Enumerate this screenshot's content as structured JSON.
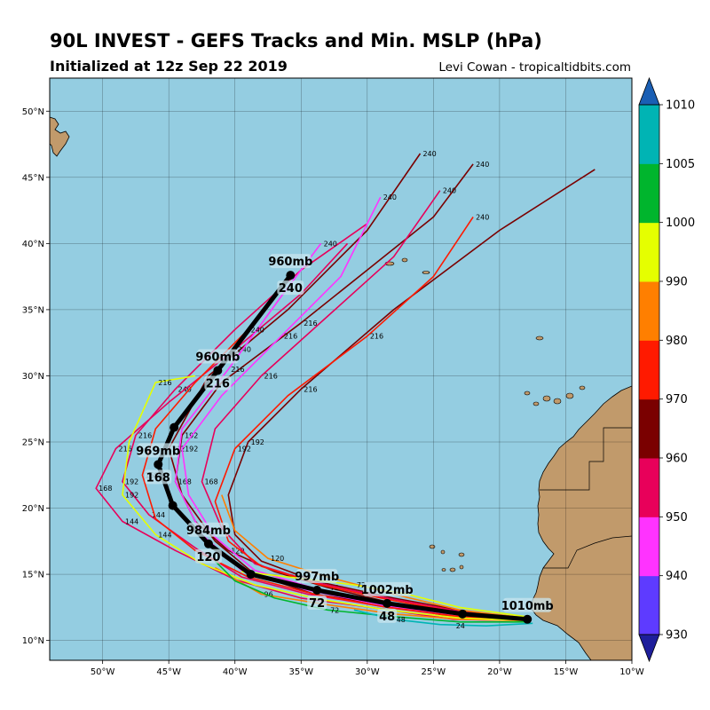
{
  "header": {
    "title": "90L INVEST - GEFS Tracks and Min. MSLP (hPa)",
    "subtitle": "Initialized at 12z Sep 22 2019",
    "credit": "Levi Cowan - tropicaltidbits.com"
  },
  "colors": {
    "ocean": "#94CDE1",
    "land": "#C19A6B",
    "mean_track": "#000000"
  },
  "map": {
    "lon_range": [
      -54,
      -10
    ],
    "lat_range": [
      8.5,
      52.5
    ],
    "lat_ticks": [
      {
        "value": 10,
        "label": "10°N"
      },
      {
        "value": 15,
        "label": "15°N"
      },
      {
        "value": 20,
        "label": "20°N"
      },
      {
        "value": 25,
        "label": "25°N"
      },
      {
        "value": 30,
        "label": "30°N"
      },
      {
        "value": 35,
        "label": "35°N"
      },
      {
        "value": 40,
        "label": "40°N"
      },
      {
        "value": 45,
        "label": "45°N"
      },
      {
        "value": 50,
        "label": "50°N"
      }
    ],
    "lon_ticks": [
      {
        "value": -50,
        "label": "50°W"
      },
      {
        "value": -45,
        "label": "45°W"
      },
      {
        "value": -40,
        "label": "40°W"
      },
      {
        "value": -35,
        "label": "35°W"
      },
      {
        "value": -30,
        "label": "30°W"
      },
      {
        "value": -25,
        "label": "25°W"
      },
      {
        "value": -20,
        "label": "20°W"
      },
      {
        "value": -15,
        "label": "15°W"
      },
      {
        "value": -10,
        "label": "10°W"
      }
    ]
  },
  "colorbar": {
    "levels": [
      930,
      940,
      950,
      960,
      970,
      980,
      990,
      1000,
      1005,
      1010
    ],
    "colors": [
      "#5E3BFF",
      "#FF33FF",
      "#E8005A",
      "#7A0000",
      "#FF1A00",
      "#FF7F00",
      "#E5FF00",
      "#00B52D",
      "#00B4B4"
    ],
    "under_color": "#1E1E9B",
    "over_color": "#1A5FB4",
    "tick_labels": [
      "930",
      "940",
      "950",
      "960",
      "970",
      "980",
      "990",
      "1000",
      "1005",
      "1010"
    ]
  },
  "mean_track": {
    "points": [
      {
        "lon": -17.9,
        "lat": 11.6,
        "hour": 0,
        "mslp": "1010mb"
      },
      {
        "lon": -22.8,
        "lat": 12.0,
        "hour": 24
      },
      {
        "lon": -28.5,
        "lat": 12.8,
        "hour": 48,
        "mslp": "1002mb"
      },
      {
        "lon": -33.8,
        "lat": 13.8,
        "hour": 72,
        "mslp": "997mb"
      },
      {
        "lon": -38.8,
        "lat": 15.0,
        "hour": 96
      },
      {
        "lon": -42.0,
        "lat": 17.3,
        "hour": 120,
        "mslp": "984mb"
      },
      {
        "lon": -44.7,
        "lat": 20.2,
        "hour": 144
      },
      {
        "lon": -45.8,
        "lat": 23.3,
        "hour": 168,
        "mslp": "969mb"
      },
      {
        "lon": -44.6,
        "lat": 26.1,
        "hour": 192
      },
      {
        "lon": -41.3,
        "lat": 30.4,
        "hour": 216,
        "mslp": "960mb"
      },
      {
        "lon": -35.8,
        "lat": 37.6,
        "hour": 240,
        "mslp": "960mb"
      }
    ]
  },
  "member_tracks": [
    {
      "color": "#7A0000",
      "points": [
        [
          -18,
          11.6
        ],
        [
          -23,
          11.9
        ],
        [
          -28,
          12.8
        ],
        [
          -33,
          14
        ],
        [
          -37,
          15.2
        ],
        [
          -40.5,
          16.8
        ],
        [
          -43,
          19
        ],
        [
          -44.5,
          22
        ],
        [
          -44,
          25.5
        ],
        [
          -41,
          29.5
        ],
        [
          -35,
          34
        ],
        [
          -30,
          38
        ],
        [
          -25,
          42
        ],
        [
          -22,
          46
        ]
      ],
      "labels": [
        [
          72,
          -33,
          14
        ],
        [
          120,
          -40.5,
          16.8
        ],
        [
          168,
          -44.5,
          22
        ],
        [
          192,
          -44,
          25.5
        ],
        [
          216,
          -35,
          34
        ],
        [
          240,
          -22,
          46
        ]
      ]
    },
    {
      "color": "#7A0000",
      "points": [
        [
          -18,
          11.5
        ],
        [
          -23,
          11.7
        ],
        [
          -28,
          12.6
        ],
        [
          -34,
          13.5
        ],
        [
          -38.5,
          15
        ],
        [
          -41.5,
          17.5
        ],
        [
          -44,
          21
        ],
        [
          -45,
          24.5
        ],
        [
          -42,
          30
        ],
        [
          -36,
          35
        ],
        [
          -30,
          41
        ],
        [
          -26,
          46.8
        ]
      ],
      "labels": [
        [
          192,
          -45,
          24.5
        ],
        [
          240,
          -26,
          46.8
        ]
      ]
    },
    {
      "color": "#7A0000",
      "points": [
        [
          -18,
          11.7
        ],
        [
          -22.5,
          12.2
        ],
        [
          -28,
          13.2
        ],
        [
          -34,
          14.5
        ],
        [
          -38,
          16
        ],
        [
          -40,
          18
        ],
        [
          -40.5,
          21
        ],
        [
          -39,
          25
        ],
        [
          -35,
          29
        ],
        [
          -28,
          35
        ],
        [
          -20,
          41
        ],
        [
          -12.8,
          45.6
        ]
      ],
      "labels": [
        [
          192,
          -39,
          25
        ],
        [
          216,
          -35,
          29
        ]
      ]
    },
    {
      "color": "#E8005A",
      "points": [
        [
          -18,
          11.6
        ],
        [
          -23,
          11.8
        ],
        [
          -29,
          12.6
        ],
        [
          -34.5,
          13.5
        ],
        [
          -39.5,
          14.8
        ],
        [
          -43,
          17
        ],
        [
          -46.5,
          19.5
        ],
        [
          -48.5,
          22
        ],
        [
          -47.5,
          25.5
        ],
        [
          -44.5,
          29
        ],
        [
          -40,
          33.5
        ],
        [
          -35,
          38
        ],
        [
          -30,
          41.5
        ]
      ],
      "labels": [
        [
          144,
          -46.5,
          19.5
        ],
        [
          192,
          -48.5,
          22
        ],
        [
          216,
          -47.5,
          25.5
        ],
        [
          240,
          -44.5,
          29
        ]
      ]
    },
    {
      "color": "#E8005A",
      "points": [
        [
          -18,
          11.5
        ],
        [
          -23.5,
          11.6
        ],
        [
          -29,
          12.4
        ],
        [
          -35,
          13.2
        ],
        [
          -40,
          14.6
        ],
        [
          -44.5,
          16.8
        ],
        [
          -48.5,
          19
        ],
        [
          -50.5,
          21.5
        ],
        [
          -49,
          24.5
        ],
        [
          -45,
          28
        ],
        [
          -40,
          32
        ],
        [
          -35,
          36.2
        ],
        [
          -31.5,
          40
        ]
      ],
      "labels": [
        [
          144,
          -48.5,
          19
        ],
        [
          168,
          -50.5,
          21.5
        ],
        [
          216,
          -49,
          24.5
        ],
        [
          240,
          -40,
          32
        ]
      ]
    },
    {
      "color": "#E8005A",
      "points": [
        [
          -18,
          11.7
        ],
        [
          -23,
          12.2
        ],
        [
          -28.5,
          13.2
        ],
        [
          -34,
          14.4
        ],
        [
          -38.5,
          15.8
        ],
        [
          -41,
          18.5
        ],
        [
          -42.5,
          22
        ],
        [
          -41.5,
          26
        ],
        [
          -38,
          30
        ],
        [
          -33,
          34.5
        ],
        [
          -28,
          39
        ],
        [
          -24.5,
          44
        ]
      ],
      "labels": [
        [
          168,
          -42.5,
          22
        ],
        [
          216,
          -38,
          30
        ],
        [
          240,
          -24.5,
          44
        ]
      ]
    },
    {
      "color": "#FF33FF",
      "points": [
        [
          -18,
          11.6
        ],
        [
          -23,
          12
        ],
        [
          -28,
          12.8
        ],
        [
          -33.5,
          13.8
        ],
        [
          -38.5,
          15.3
        ],
        [
          -41.5,
          17.8
        ],
        [
          -43.5,
          21
        ],
        [
          -44,
          24.5
        ],
        [
          -41,
          28.5
        ],
        [
          -36.5,
          33
        ],
        [
          -32,
          37.5
        ],
        [
          -29,
          43.5
        ]
      ],
      "labels": [
        [
          192,
          -44,
          24.5
        ],
        [
          216,
          -36.5,
          33
        ],
        [
          240,
          -29,
          43.5
        ]
      ]
    },
    {
      "color": "#FF33FF",
      "points": [
        [
          -18,
          11.6
        ],
        [
          -23,
          11.9
        ],
        [
          -29,
          12.7
        ],
        [
          -34.5,
          13.8
        ],
        [
          -39.5,
          15.3
        ],
        [
          -42.5,
          18
        ],
        [
          -44.5,
          22
        ],
        [
          -44,
          26
        ],
        [
          -40.5,
          30.5
        ],
        [
          -36.5,
          36
        ],
        [
          -33.5,
          40
        ]
      ],
      "labels": [
        [
          216,
          -40.5,
          30.5
        ],
        [
          240,
          -33.5,
          40
        ]
      ]
    },
    {
      "color": "#FF1A00",
      "points": [
        [
          -18,
          11.6
        ],
        [
          -23,
          12.1
        ],
        [
          -28.5,
          13.1
        ],
        [
          -33.5,
          14.2
        ],
        [
          -38,
          15.6
        ],
        [
          -40.5,
          17.5
        ],
        [
          -41.5,
          20.5
        ],
        [
          -40,
          24.5
        ],
        [
          -36,
          28.5
        ],
        [
          -30,
          33
        ],
        [
          -25,
          37.5
        ],
        [
          -22,
          42
        ]
      ],
      "labels": [
        [
          192,
          -40,
          24.5
        ],
        [
          216,
          -30,
          33
        ],
        [
          240,
          -22,
          42
        ]
      ]
    },
    {
      "color": "#FF1A00",
      "points": [
        [
          -18,
          11.5
        ],
        [
          -23,
          11.8
        ],
        [
          -28.5,
          12.5
        ],
        [
          -34,
          13.5
        ],
        [
          -39,
          14.8
        ],
        [
          -43,
          16.8
        ],
        [
          -46,
          19.2
        ],
        [
          -47,
          22.5
        ],
        [
          -46,
          26
        ],
        [
          -43,
          29.5
        ],
        [
          -39,
          33.5
        ],
        [
          -36,
          37.5
        ]
      ],
      "labels": [
        [
          168,
          -47,
          22.5
        ],
        [
          240,
          -39,
          33.5
        ]
      ]
    },
    {
      "color": "#FF7F00",
      "points": [
        [
          -18,
          11.7
        ],
        [
          -23,
          12.3
        ],
        [
          -28,
          13.5
        ],
        [
          -33,
          14.8
        ],
        [
          -37.5,
          16.2
        ],
        [
          -40,
          18.3
        ],
        [
          -41,
          21
        ]
      ],
      "labels": [
        [
          120,
          -37.5,
          16.2
        ]
      ]
    },
    {
      "color": "#FF7F00",
      "points": [
        [
          -18,
          11.5
        ],
        [
          -23,
          11.6
        ],
        [
          -28,
          12
        ],
        [
          -33,
          12.7
        ],
        [
          -38,
          13.5
        ],
        [
          -41.5,
          15.5
        ]
      ],
      "labels": [
        [
          96,
          -38,
          13.5
        ]
      ]
    },
    {
      "color": "#E5FF00",
      "points": [
        [
          -18,
          11.5
        ],
        [
          -23,
          11.7
        ],
        [
          -28.5,
          12.3
        ],
        [
          -33.5,
          13.1
        ],
        [
          -38.5,
          14.2
        ],
        [
          -42.5,
          15.8
        ],
        [
          -46,
          18
        ],
        [
          -48.5,
          21
        ],
        [
          -48,
          25
        ],
        [
          -46,
          29.5
        ],
        [
          -43,
          30
        ]
      ],
      "labels": [
        [
          144,
          -46,
          18
        ],
        [
          192,
          -48.5,
          21
        ],
        [
          216,
          -46,
          29.5
        ]
      ]
    },
    {
      "color": "#E5FF00",
      "points": [
        [
          -18,
          11.8
        ],
        [
          -23,
          12.5
        ],
        [
          -27,
          13.5
        ],
        [
          -31,
          14.2
        ],
        [
          -36,
          14.8
        ],
        [
          -39.5,
          15.2
        ]
      ],
      "labels": [
        [
          72,
          -31,
          14.2
        ]
      ]
    },
    {
      "color": "#00B52D",
      "points": [
        [
          -18,
          11.4
        ],
        [
          -23,
          11.4
        ],
        [
          -28,
          11.8
        ],
        [
          -33,
          12.3
        ],
        [
          -37,
          13.2
        ],
        [
          -40,
          14.5
        ],
        [
          -41.5,
          16
        ]
      ],
      "labels": [
        [
          72,
          -33,
          12.3
        ]
      ]
    },
    {
      "color": "#00B4B4",
      "points": [
        [
          -17.5,
          11.3
        ],
        [
          -21,
          11.1
        ],
        [
          -24.5,
          11.2
        ],
        [
          -28,
          11.6
        ],
        [
          -31,
          12.3
        ]
      ],
      "labels": [
        [
          24,
          -23.5,
          11.1
        ],
        [
          48,
          -28,
          11.6
        ]
      ]
    }
  ]
}
